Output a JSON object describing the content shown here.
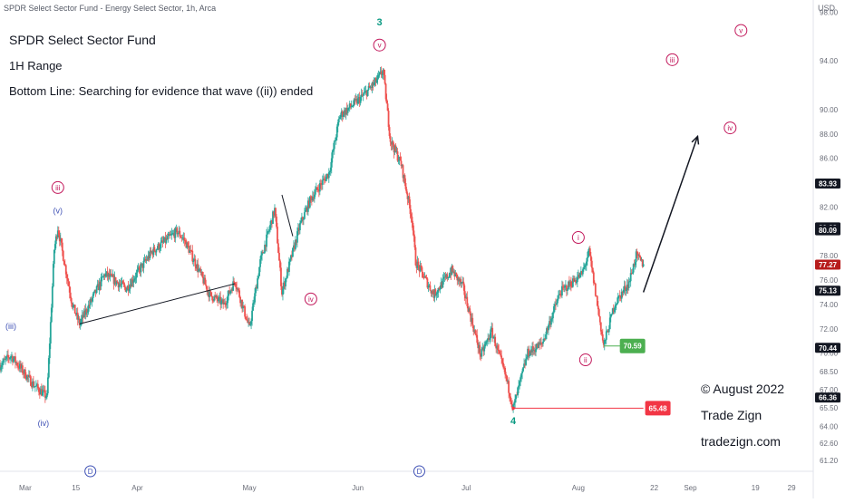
{
  "header": {
    "symbol_line": "SPDR Select Sector Fund - Energy Select Sector, 1h, Arca",
    "currency": "USD"
  },
  "annotations": {
    "title": "SPDR Select Sector Fund",
    "timeframe": "1H Range",
    "bottom_line": "Bottom Line: Searching for evidence that wave ((ii)) ended"
  },
  "footer": {
    "copyright": "© August 2022",
    "brand": "Trade Zign",
    "website": "tradezign.com"
  },
  "colors": {
    "up": "#26a69a",
    "down": "#ef5350",
    "wave_label_magenta": "#c2185b",
    "wave_label_blue": "#3f51b5",
    "wave_label_green": "#089981",
    "tag_green": "#4caf50",
    "tag_red": "#f23645",
    "tag_dark_red": "#b71c1c",
    "tag_black": "#131722"
  },
  "chart_data": {
    "type": "candlestick",
    "x_axis": {
      "type": "time",
      "range": [
        "2022-02-22",
        "2022-10-05"
      ],
      "ticks": [
        {
          "label": "Mar",
          "date": "2022-03-01"
        },
        {
          "label": "15",
          "date": "2022-03-15"
        },
        {
          "label": "Apr",
          "date": "2022-04-01"
        },
        {
          "label": "May",
          "date": "2022-05-02"
        },
        {
          "label": "Jun",
          "date": "2022-06-01"
        },
        {
          "label": "Jul",
          "date": "2022-07-01"
        },
        {
          "label": "Aug",
          "date": "2022-08-01"
        },
        {
          "label": "22",
          "date": "2022-08-22"
        },
        {
          "label": "Sep",
          "date": "2022-09-01"
        },
        {
          "label": "19",
          "date": "2022-09-19"
        },
        {
          "label": "29",
          "date": "2022-09-29"
        }
      ]
    },
    "y_axis": {
      "min": 60.3,
      "max": 99.0,
      "tick_labels": [
        "98.00",
        "94.00",
        "90.00",
        "88.00",
        "86.00",
        "82.00",
        "78.00",
        "76.00",
        "74.00",
        "72.00",
        "70.00",
        "68.50",
        "67.00",
        "65.50",
        "64.00",
        "62.60",
        "61.20"
      ]
    },
    "path": [
      {
        "date": "2022-02-22",
        "price": 69.0
      },
      {
        "date": "2022-02-25",
        "price": 69.8
      },
      {
        "date": "2022-03-03",
        "price": 67.5
      },
      {
        "date": "2022-03-07",
        "price": 66.4
      },
      {
        "date": "2022-03-09",
        "price": 78.5
      },
      {
        "date": "2022-03-10",
        "price": 80.3
      },
      {
        "date": "2022-03-14",
        "price": 74.0
      },
      {
        "date": "2022-03-16",
        "price": 72.4
      },
      {
        "date": "2022-03-23",
        "price": 76.5
      },
      {
        "date": "2022-03-29",
        "price": 75.3
      },
      {
        "date": "2022-04-05",
        "price": 78.3
      },
      {
        "date": "2022-04-12",
        "price": 80.0
      },
      {
        "date": "2022-04-14",
        "price": 79.3
      },
      {
        "date": "2022-04-18",
        "price": 76.8
      },
      {
        "date": "2022-04-21",
        "price": 74.8
      },
      {
        "date": "2022-04-25",
        "price": 74.0
      },
      {
        "date": "2022-04-28",
        "price": 76.0
      },
      {
        "date": "2022-05-02",
        "price": 72.0
      },
      {
        "date": "2022-05-05",
        "price": 77.5
      },
      {
        "date": "2022-05-09",
        "price": 81.8
      },
      {
        "date": "2022-05-11",
        "price": 75.0
      },
      {
        "date": "2022-05-16",
        "price": 80.5
      },
      {
        "date": "2022-05-19",
        "price": 82.7
      },
      {
        "date": "2022-05-24",
        "price": 84.8
      },
      {
        "date": "2022-05-27",
        "price": 89.5
      },
      {
        "date": "2022-06-02",
        "price": 91.0
      },
      {
        "date": "2022-06-06",
        "price": 92.3
      },
      {
        "date": "2022-06-08",
        "price": 93.2
      },
      {
        "date": "2022-06-10",
        "price": 87.5
      },
      {
        "date": "2022-06-13",
        "price": 85.5
      },
      {
        "date": "2022-06-16",
        "price": 81.0
      },
      {
        "date": "2022-06-17",
        "price": 77.5
      },
      {
        "date": "2022-06-22",
        "price": 74.8
      },
      {
        "date": "2022-06-27",
        "price": 76.8
      },
      {
        "date": "2022-06-30",
        "price": 75.5
      },
      {
        "date": "2022-07-05",
        "price": 69.8
      },
      {
        "date": "2022-07-08",
        "price": 71.8
      },
      {
        "date": "2022-07-12",
        "price": 68.0
      },
      {
        "date": "2022-07-14",
        "price": 65.48
      },
      {
        "date": "2022-07-18",
        "price": 70.0
      },
      {
        "date": "2022-07-22",
        "price": 70.8
      },
      {
        "date": "2022-07-27",
        "price": 75.0
      },
      {
        "date": "2022-08-02",
        "price": 76.5
      },
      {
        "date": "2022-08-04",
        "price": 78.3
      },
      {
        "date": "2022-08-06",
        "price": 74.5
      },
      {
        "date": "2022-08-08",
        "price": 70.59
      },
      {
        "date": "2022-08-11",
        "price": 74.0
      },
      {
        "date": "2022-08-15",
        "price": 75.8
      },
      {
        "date": "2022-08-17",
        "price": 78.0
      },
      {
        "date": "2022-08-19",
        "price": 77.27
      }
    ],
    "projection": {
      "from": {
        "date": "2022-08-19",
        "price": 75.0
      },
      "to": {
        "date": "2022-09-03",
        "price": 87.8
      }
    },
    "trendlines": [
      {
        "from": {
          "date": "2022-03-16",
          "price": 72.4
        },
        "to": {
          "date": "2022-04-28",
          "price": 75.7
        }
      },
      {
        "from": {
          "date": "2022-05-11",
          "price": 83.0
        },
        "to": {
          "date": "2022-05-14",
          "price": 79.6
        }
      }
    ],
    "horizontal_level": {
      "price": 65.48,
      "from_date": "2022-07-14",
      "to_date": "2022-08-19"
    },
    "wave_labels": [
      {
        "text": "(iii)",
        "date": "2022-02-25",
        "price": 72.2,
        "style": "blue-text"
      },
      {
        "text": "(iv)",
        "date": "2022-03-06",
        "price": 64.25,
        "style": "blue-text"
      },
      {
        "text": "(v)",
        "date": "2022-03-10",
        "price": 81.7,
        "style": "blue-text"
      },
      {
        "text": "iii",
        "date": "2022-03-10",
        "price": 83.6,
        "style": "magenta-circle"
      },
      {
        "text": "iv",
        "date": "2022-05-19",
        "price": 74.45,
        "style": "magenta-circle"
      },
      {
        "text": "v",
        "date": "2022-06-07",
        "price": 95.3,
        "style": "magenta-circle"
      },
      {
        "text": "3",
        "date": "2022-06-07",
        "price": 97.2,
        "style": "green-text"
      },
      {
        "text": "4",
        "date": "2022-07-14",
        "price": 64.45,
        "style": "green-text"
      },
      {
        "text": "i",
        "date": "2022-08-01",
        "price": 79.5,
        "style": "magenta-circle"
      },
      {
        "text": "ii",
        "date": "2022-08-03",
        "price": 69.45,
        "style": "magenta-circle"
      },
      {
        "text": "iii",
        "date": "2022-08-27",
        "price": 94.1,
        "style": "magenta-circle"
      },
      {
        "text": "iv",
        "date": "2022-09-12",
        "price": 88.5,
        "style": "magenta-circle"
      },
      {
        "text": "v",
        "date": "2022-09-15",
        "price": 96.5,
        "style": "magenta-circle"
      },
      {
        "text": "D",
        "date": "2022-03-19",
        "price": 60.3,
        "style": "blue-circle"
      },
      {
        "text": "D",
        "date": "2022-06-18",
        "price": 60.3,
        "style": "blue-circle"
      }
    ],
    "price_tags": [
      {
        "label": "83.93",
        "price": 83.93,
        "style": "axis-black"
      },
      {
        "label": "80.33",
        "price": 80.33,
        "style": "axis-black"
      },
      {
        "label": "80.09",
        "price": 80.09,
        "style": "axis-black"
      },
      {
        "label": "77.27",
        "price": 77.27,
        "style": "axis-darkred"
      },
      {
        "label": "75.13",
        "price": 75.13,
        "style": "axis-black"
      },
      {
        "label": "70.44",
        "price": 70.44,
        "style": "axis-black"
      },
      {
        "label": "66.36",
        "price": 66.36,
        "style": "axis-black"
      },
      {
        "label": "70.59",
        "price": 70.59,
        "style": "chart-green",
        "date": "2022-08-16"
      },
      {
        "label": "65.48",
        "price": 65.48,
        "style": "chart-red",
        "date": "2022-08-23"
      }
    ]
  }
}
